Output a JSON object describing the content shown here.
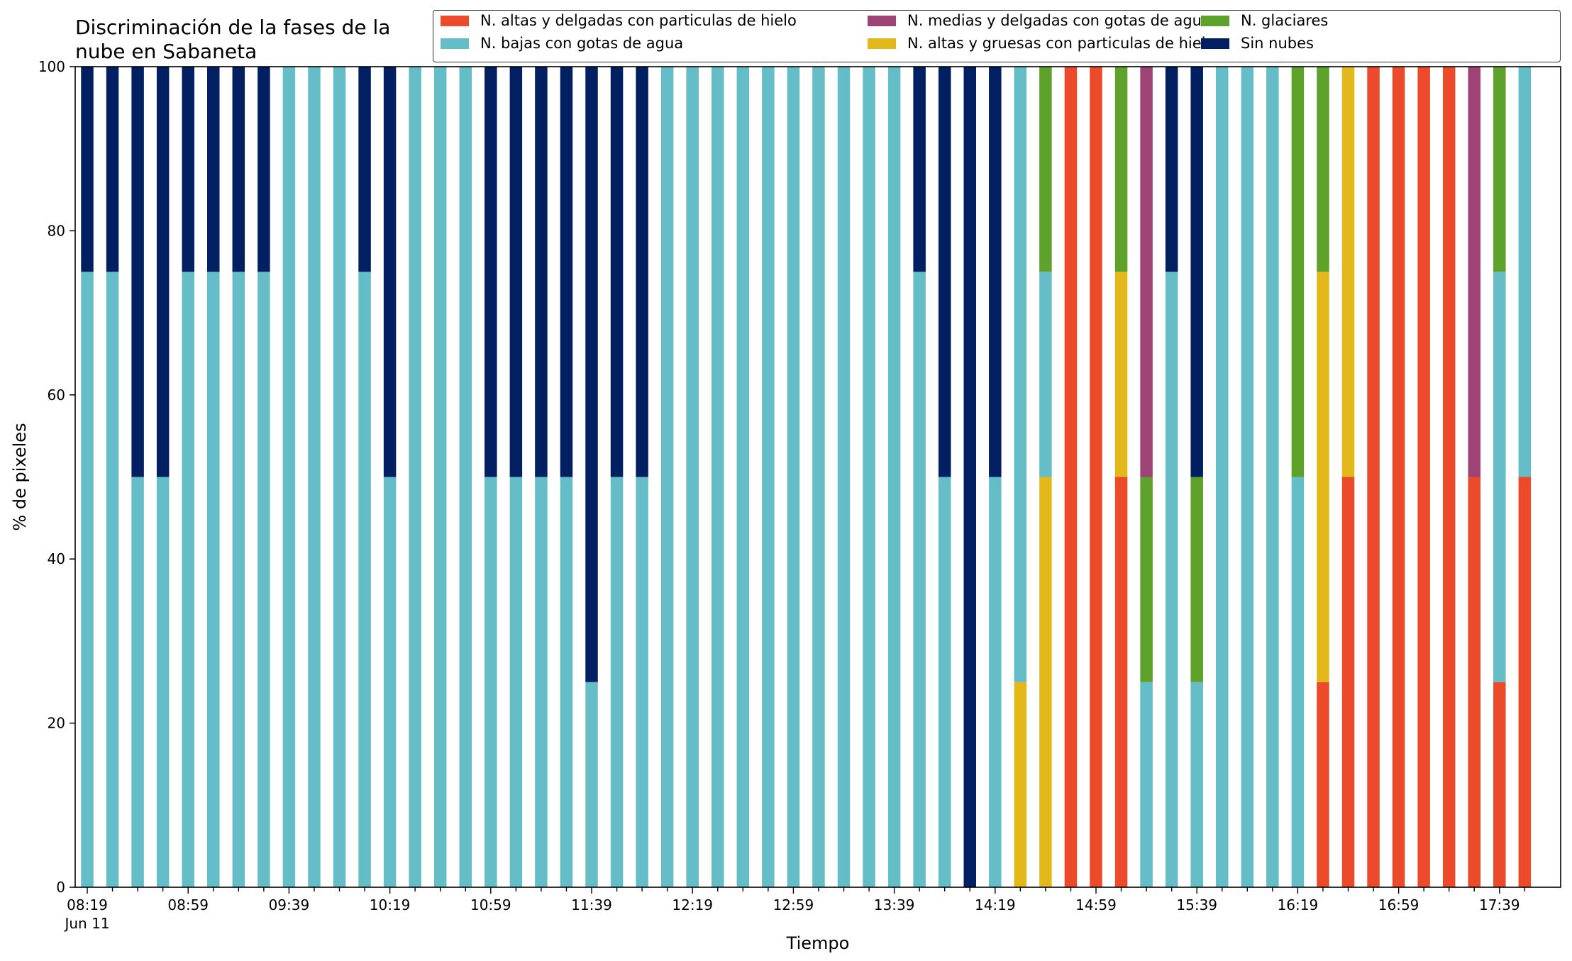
{
  "chart_data": {
    "type": "bar",
    "stacked": true,
    "title": "Discriminación de la fases de la nube en Sabaneta",
    "title_lines": [
      "Discriminación de la fases de la",
      "nube en Sabaneta"
    ],
    "xlabel": "Tiempo",
    "ylabel": "% de pixeles",
    "ylim": [
      0,
      100
    ],
    "yticks": [
      "0",
      "20",
      "40",
      "60",
      "80",
      "100"
    ],
    "x_tick_labels": [
      "08:19",
      "08:59",
      "09:39",
      "10:19",
      "10:59",
      "11:39",
      "12:19",
      "12:59",
      "13:39",
      "14:19",
      "14:59",
      "15:39",
      "16:19",
      "16:59",
      "17:39"
    ],
    "x_date_label": "Jun 11",
    "legend_placement": "top",
    "categories": [
      "08:19",
      "08:29",
      "08:39",
      "08:49",
      "08:59",
      "09:09",
      "09:19",
      "09:29",
      "09:39",
      "09:49",
      "09:59",
      "10:09",
      "10:19",
      "10:29",
      "10:39",
      "10:49",
      "10:59",
      "11:09",
      "11:19",
      "11:29",
      "11:39",
      "11:49",
      "11:59",
      "12:09",
      "12:19",
      "12:29",
      "12:39",
      "12:49",
      "12:59",
      "13:09",
      "13:19",
      "13:29",
      "13:39",
      "13:49",
      "13:59",
      "14:09",
      "14:19",
      "14:29",
      "14:39",
      "14:49",
      "14:59",
      "15:09",
      "15:19",
      "15:29",
      "15:39",
      "15:49",
      "15:59",
      "16:09",
      "16:19",
      "16:29",
      "16:39",
      "16:49",
      "16:59",
      "17:09",
      "17:19",
      "17:29",
      "17:39",
      "17:49"
    ],
    "series": [
      {
        "name": "N. altas y delgadas con particulas de hielo",
        "color": "#ec4b2b",
        "values": [
          0,
          0,
          0,
          0,
          0,
          0,
          0,
          0,
          0,
          0,
          0,
          0,
          0,
          0,
          0,
          0,
          0,
          0,
          0,
          0,
          0,
          0,
          0,
          0,
          0,
          0,
          0,
          0,
          0,
          0,
          0,
          0,
          0,
          0,
          0,
          0,
          0,
          0,
          0,
          100,
          100,
          50,
          0,
          0,
          0,
          0,
          0,
          0,
          0,
          25,
          50,
          100,
          100,
          100,
          100,
          50,
          25,
          50
        ]
      },
      {
        "name": "N. altas y gruesas con particulas de hielo",
        "color": "#e3b81b",
        "values": [
          0,
          0,
          0,
          0,
          0,
          0,
          0,
          0,
          0,
          0,
          0,
          0,
          0,
          0,
          0,
          0,
          0,
          0,
          0,
          0,
          0,
          0,
          0,
          0,
          0,
          0,
          0,
          0,
          0,
          0,
          0,
          0,
          0,
          0,
          0,
          0,
          0,
          25,
          50,
          0,
          0,
          25,
          0,
          0,
          0,
          0,
          0,
          0,
          0,
          50,
          50,
          0,
          0,
          0,
          0,
          0,
          0,
          0
        ]
      },
      {
        "name": "N. bajas con gotas de agua",
        "color": "#65bdc8",
        "values": [
          75,
          75,
          50,
          50,
          75,
          75,
          75,
          75,
          100,
          100,
          100,
          75,
          50,
          100,
          100,
          100,
          50,
          50,
          50,
          50,
          25,
          50,
          50,
          100,
          100,
          100,
          100,
          100,
          100,
          100,
          100,
          100,
          100,
          75,
          50,
          0,
          50,
          75,
          25,
          0,
          0,
          0,
          25,
          75,
          25,
          100,
          100,
          100,
          50,
          0,
          0,
          0,
          0,
          0,
          0,
          0,
          50,
          50
        ]
      },
      {
        "name": "N. glaciares",
        "color": "#5ea12b",
        "values": [
          0,
          0,
          0,
          0,
          0,
          0,
          0,
          0,
          0,
          0,
          0,
          0,
          0,
          0,
          0,
          0,
          0,
          0,
          0,
          0,
          0,
          0,
          0,
          0,
          0,
          0,
          0,
          0,
          0,
          0,
          0,
          0,
          0,
          0,
          0,
          0,
          0,
          0,
          25,
          0,
          0,
          25,
          25,
          0,
          25,
          0,
          0,
          0,
          50,
          25,
          0,
          0,
          0,
          0,
          0,
          0,
          25,
          0
        ]
      },
      {
        "name": "N. medias y delgadas con gotas de agua",
        "color": "#9e4376",
        "values": [
          0,
          0,
          0,
          0,
          0,
          0,
          0,
          0,
          0,
          0,
          0,
          0,
          0,
          0,
          0,
          0,
          0,
          0,
          0,
          0,
          0,
          0,
          0,
          0,
          0,
          0,
          0,
          0,
          0,
          0,
          0,
          0,
          0,
          0,
          0,
          0,
          0,
          0,
          0,
          0,
          0,
          0,
          50,
          0,
          0,
          0,
          0,
          0,
          0,
          0,
          0,
          0,
          0,
          0,
          0,
          50,
          0,
          0
        ]
      },
      {
        "name": "Sin nubes",
        "color": "#022061",
        "values": [
          25,
          25,
          50,
          50,
          25,
          25,
          25,
          25,
          0,
          0,
          0,
          25,
          50,
          0,
          0,
          0,
          50,
          50,
          50,
          50,
          75,
          50,
          50,
          0,
          0,
          0,
          0,
          0,
          0,
          0,
          0,
          0,
          0,
          25,
          50,
          100,
          50,
          0,
          0,
          0,
          0,
          0,
          0,
          25,
          50,
          0,
          0,
          0,
          0,
          0,
          0,
          0,
          0,
          0,
          0,
          0,
          0,
          0
        ]
      }
    ],
    "legend_order": [
      0,
      2,
      4,
      1,
      3,
      5
    ]
  }
}
